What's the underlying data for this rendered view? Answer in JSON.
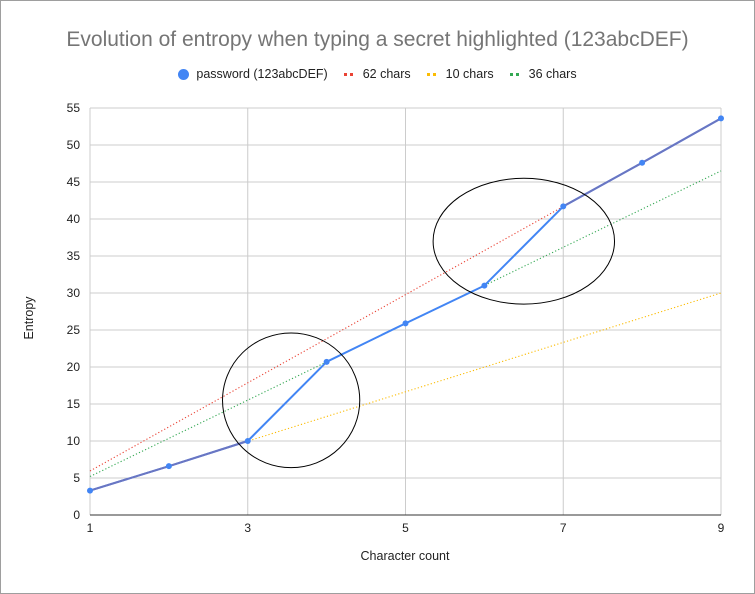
{
  "chart_data": {
    "type": "line",
    "title": "Evolution of entropy when typing a secret highlighted (123abcDEF)",
    "xlabel": "Character count",
    "ylabel": "Entropy",
    "xlim": [
      1,
      9
    ],
    "ylim": [
      0,
      55
    ],
    "x_ticks": [
      1,
      3,
      5,
      7,
      9
    ],
    "y_ticks": [
      0,
      5,
      10,
      15,
      20,
      25,
      30,
      35,
      40,
      45,
      50,
      55
    ],
    "grid": true,
    "legend_position": "top",
    "series": [
      {
        "name": "password (123abcDEF)",
        "style": "solid-markers",
        "color": "#4285f4",
        "x": [
          1,
          2,
          3,
          4,
          5,
          6,
          7,
          8,
          9
        ],
        "values": [
          3.3,
          6.6,
          10.0,
          20.7,
          25.9,
          31.0,
          41.7,
          47.6,
          53.6
        ]
      },
      {
        "name": "62 chars",
        "style": "dotted",
        "color": "#ea4335",
        "x": [
          1,
          9
        ],
        "values": [
          5.95,
          53.6
        ]
      },
      {
        "name": "10 chars",
        "style": "dotted",
        "color": "#fbbc04",
        "x": [
          1,
          9
        ],
        "values": [
          3.3,
          30.0
        ]
      },
      {
        "name": "36 chars",
        "style": "dotted",
        "color": "#34a853",
        "x": [
          1,
          9
        ],
        "values": [
          5.2,
          46.5
        ]
      }
    ],
    "annotations": [
      {
        "type": "ellipse",
        "cx": 3.55,
        "cy": 15.5,
        "rx_data": 0.87,
        "ry_data": 9.1
      },
      {
        "type": "ellipse",
        "cx": 6.5,
        "cy": 37.0,
        "rx_data": 1.15,
        "ry_data": 8.5
      }
    ]
  },
  "colors": {
    "text_gray": "#757575",
    "grid": "#cccccc",
    "axis": "#333333",
    "overlap_line": "#6a76c2"
  }
}
